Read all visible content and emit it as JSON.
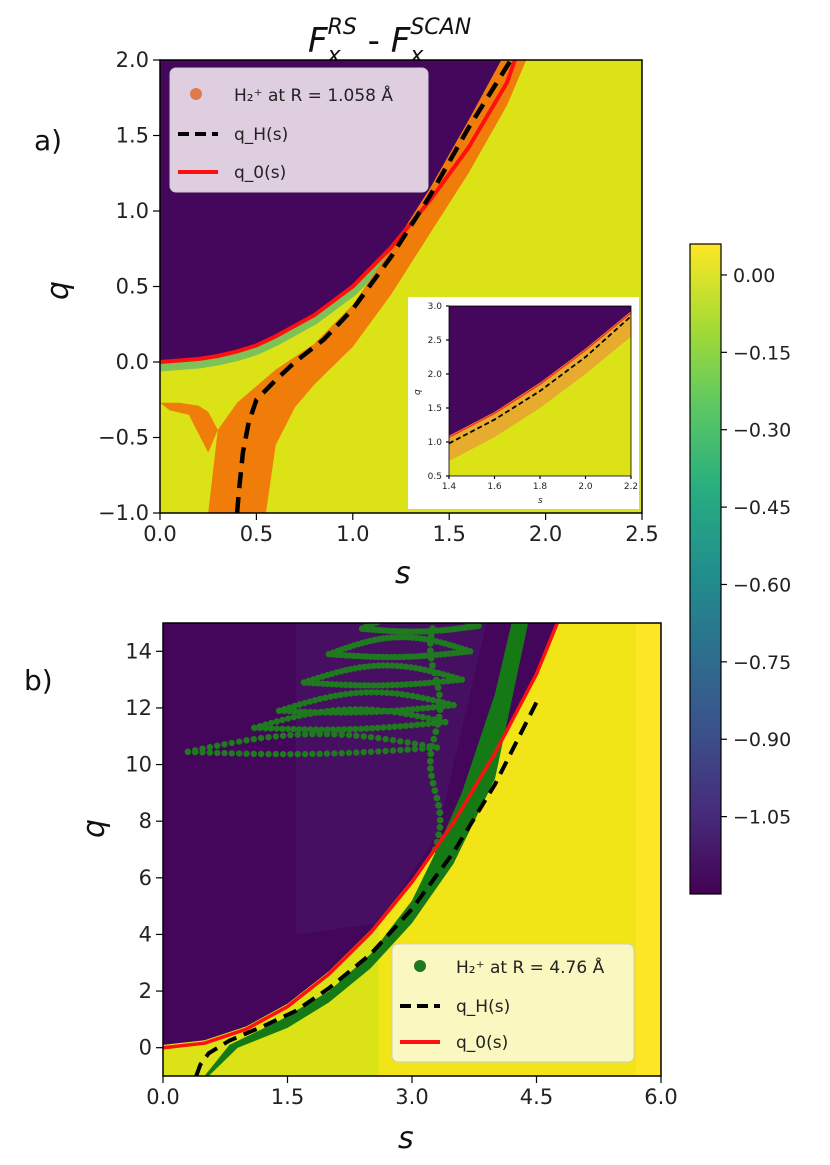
{
  "chart_data": [
    {
      "panel": "a)",
      "type": "heatmap",
      "title": "F_x^RS - F_x^SCAN",
      "title_parts": {
        "base1": "F",
        "sub1": "x",
        "sup1": "RS",
        "sep": " - ",
        "base2": "F",
        "sub2": "x",
        "sup2": "SCAN"
      },
      "xlabel": "s",
      "ylabel": "q",
      "xlim": [
        0.0,
        2.5
      ],
      "ylim": [
        -1.0,
        2.0
      ],
      "xticks": [
        "0.0",
        "0.5",
        "1.0",
        "1.5",
        "2.0",
        "2.5"
      ],
      "yticks": [
        "−1.0",
        "−0.5",
        "0.0",
        "0.5",
        "1.0",
        "1.5",
        "2.0"
      ],
      "series": [
        {
          "name": "H2+ at R = 1.058 Å",
          "kind": "scatter-band",
          "color": "#f07d0a",
          "band_lower": {
            "s": [
              0.55,
              0.6,
              0.7,
              0.8,
              1.0,
              1.2,
              1.4,
              1.6,
              1.8,
              1.9
            ],
            "q": [
              -1.0,
              -0.55,
              -0.3,
              -0.15,
              0.1,
              0.45,
              0.85,
              1.25,
              1.7,
              2.0
            ]
          },
          "band_upper": {
            "s": [
              0.25,
              0.3,
              0.4,
              0.6,
              0.8,
              1.0,
              1.2,
              1.4,
              1.6,
              1.77
            ],
            "q": [
              -1.0,
              -0.45,
              -0.27,
              -0.05,
              0.12,
              0.38,
              0.75,
              1.15,
              1.6,
              2.0
            ]
          }
        },
        {
          "name": "q_H(s)",
          "kind": "line",
          "style": "dashed",
          "color": "#000000",
          "s": [
            0.4,
            0.41,
            0.43,
            0.46,
            0.5,
            0.6,
            0.7,
            0.85,
            1.0,
            1.2,
            1.4,
            1.6,
            1.82
          ],
          "q": [
            -1.0,
            -0.85,
            -0.6,
            -0.4,
            -0.25,
            -0.12,
            0.0,
            0.15,
            0.35,
            0.7,
            1.1,
            1.55,
            2.0
          ]
        },
        {
          "name": "q_0(s)",
          "kind": "line",
          "style": "solid",
          "color": "#ff0000",
          "s": [
            0.0,
            0.1,
            0.2,
            0.3,
            0.4,
            0.5,
            0.6,
            0.8,
            1.0,
            1.2,
            1.4,
            1.6,
            1.8,
            1.84
          ],
          "q": [
            0.0,
            0.01,
            0.02,
            0.04,
            0.07,
            0.11,
            0.17,
            0.31,
            0.5,
            0.76,
            1.07,
            1.42,
            1.85,
            2.0
          ]
        }
      ],
      "legend": [
        {
          "marker": "dot",
          "color": "#e07a4a",
          "label": "H₂⁺ at R = 1.058 Å"
        },
        {
          "marker": "dash",
          "color": "#000000",
          "label": "q_H(s)"
        },
        {
          "marker": "line",
          "color": "#ff0000",
          "label": "q_0(s)"
        }
      ],
      "legend_position": "upper-left",
      "inset": {
        "xlabel": "s",
        "ylabel": "q",
        "xlim": [
          1.4,
          2.2
        ],
        "ylim": [
          0.5,
          3.0
        ],
        "xticks": [
          "1.4",
          "1.6",
          "1.8",
          "2.0",
          "2.2"
        ],
        "yticks": [
          "0.5",
          "1.0",
          "1.5",
          "2.0",
          "2.5",
          "3.0"
        ],
        "q0": {
          "s": [
            1.4,
            1.6,
            1.8,
            2.0,
            2.2
          ],
          "q": [
            1.07,
            1.42,
            1.85,
            2.35,
            2.9
          ]
        },
        "qH": {
          "s": [
            1.4,
            1.6,
            1.8,
            2.0,
            2.2
          ],
          "q": [
            0.98,
            1.33,
            1.75,
            2.25,
            2.85
          ]
        }
      }
    },
    {
      "panel": "b)",
      "type": "heatmap",
      "xlabel": "s",
      "ylabel": "q",
      "xlim": [
        0.0,
        6.0
      ],
      "ylim": [
        -1.0,
        15.0
      ],
      "xticks": [
        "0.0",
        "1.5",
        "3.0",
        "4.5",
        "6.0"
      ],
      "yticks": [
        "0",
        "2",
        "4",
        "6",
        "8",
        "10",
        "12",
        "14"
      ],
      "series": [
        {
          "name": "H2+ at R = 4.76 Å",
          "kind": "scatter",
          "color": "#1e7a1e",
          "band_lower": {
            "s": [
              0.55,
              0.9,
              1.5,
              2.0,
              2.5,
              3.0,
              3.5,
              4.0,
              4.4
            ],
            "q": [
              -1.0,
              0.0,
              0.7,
              1.6,
              2.8,
              4.4,
              6.5,
              9.5,
              15.0
            ]
          },
          "band_upper": {
            "s": [
              0.5,
              0.8,
              1.4,
              2.0,
              2.5,
              3.0,
              3.3,
              3.6,
              4.0,
              4.2
            ],
            "q": [
              -1.0,
              0.1,
              0.95,
              2.0,
              3.3,
              5.2,
              7.0,
              9.0,
              12.5,
              15.0
            ]
          }
        },
        {
          "name": "q_H(s)",
          "kind": "line",
          "style": "dashed",
          "color": "#000000",
          "s": [
            0.4,
            0.45,
            0.55,
            0.8,
            1.2,
            1.6,
            2.0,
            2.5,
            3.0,
            3.5,
            4.0,
            4.5
          ],
          "q": [
            -1.0,
            -0.6,
            -0.2,
            0.25,
            0.75,
            1.3,
            2.1,
            3.3,
            4.9,
            6.9,
            9.3,
            12.2
          ]
        },
        {
          "name": "q_0(s)",
          "kind": "line",
          "style": "solid",
          "color": "#ff0000",
          "s": [
            0.0,
            0.5,
            1.0,
            1.5,
            2.0,
            2.5,
            3.0,
            3.5,
            4.0,
            4.5,
            4.75
          ],
          "q": [
            0.0,
            0.16,
            0.65,
            1.45,
            2.6,
            4.05,
            5.85,
            7.95,
            10.4,
            13.2,
            15.0
          ]
        }
      ],
      "legend": [
        {
          "marker": "dot",
          "color": "#1e7a1e",
          "label": "H₂⁺ at R = 4.76 Å"
        },
        {
          "marker": "dash",
          "color": "#000000",
          "label": "q_H(s)"
        },
        {
          "marker": "line",
          "color": "#ff0000",
          "label": "q_0(s)"
        }
      ],
      "legend_position": "lower-right"
    }
  ],
  "colorbar": {
    "colormap": "viridis",
    "range": [
      -1.2,
      0.06
    ],
    "ticks": [
      {
        "value": 0.0,
        "label": "0.00"
      },
      {
        "value": -0.15,
        "label": "−0.15"
      },
      {
        "value": -0.3,
        "label": "−0.30"
      },
      {
        "value": -0.45,
        "label": "−0.45"
      },
      {
        "value": -0.6,
        "label": "−0.60"
      },
      {
        "value": -0.75,
        "label": "−0.75"
      },
      {
        "value": -0.9,
        "label": "−0.90"
      },
      {
        "value": -1.05,
        "label": "−1.05"
      }
    ]
  },
  "colors": {
    "yellow_bg": "#dbe317",
    "bright_yellow": "#f2e517",
    "purple": "#44065a",
    "purple2": "#481467",
    "orange_band": "#f07d0a",
    "green_band": "#157a15"
  }
}
